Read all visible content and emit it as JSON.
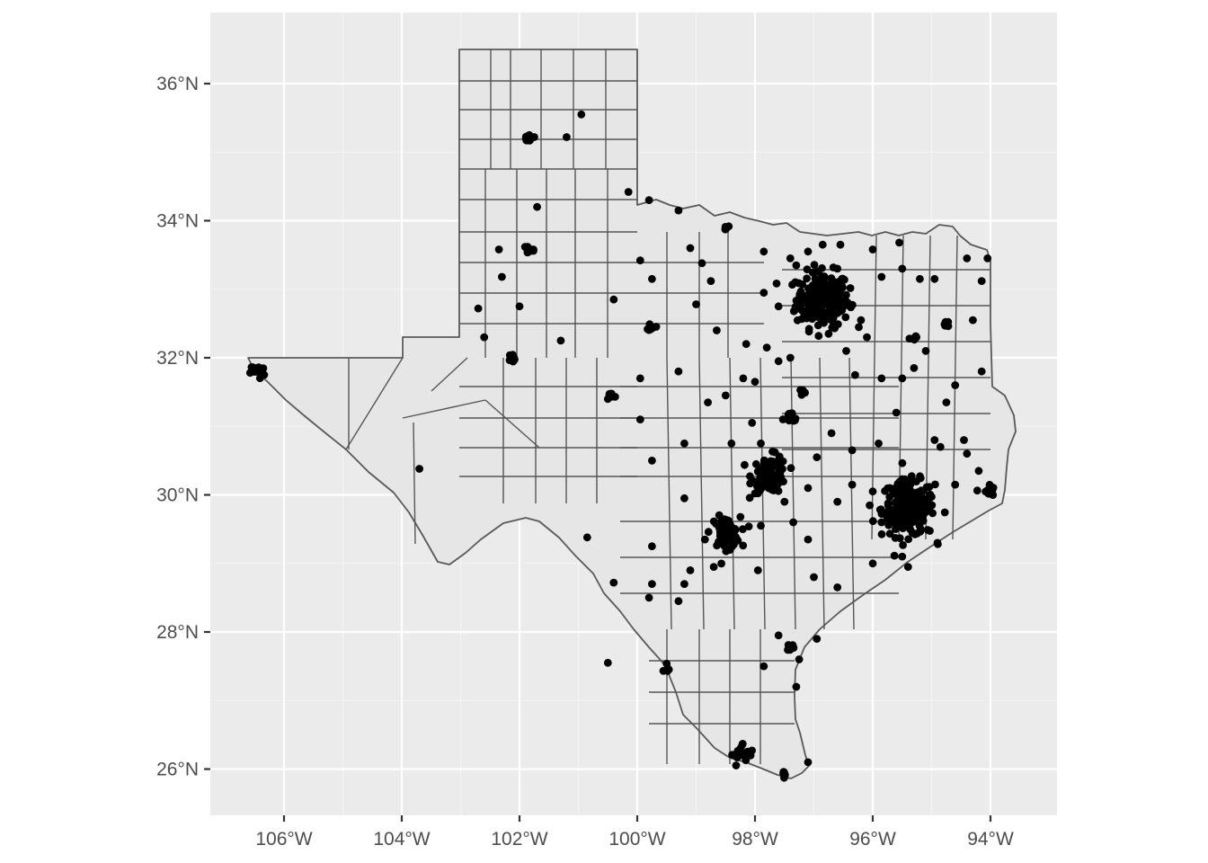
{
  "map": {
    "title": "",
    "x_ticks": [
      {
        "value": -106,
        "label": "106°W"
      },
      {
        "value": -104,
        "label": "104°W"
      },
      {
        "value": -102,
        "label": "102°W"
      },
      {
        "value": -100,
        "label": "100°W"
      },
      {
        "value": -98,
        "label": "98°W"
      },
      {
        "value": -96,
        "label": "96°W"
      },
      {
        "value": -94,
        "label": "94°W"
      }
    ],
    "y_ticks": [
      {
        "value": 26,
        "label": "26°N"
      },
      {
        "value": 28,
        "label": "28°N"
      },
      {
        "value": 30,
        "label": "30°N"
      },
      {
        "value": 32,
        "label": "32°N"
      },
      {
        "value": 34,
        "label": "34°N"
      },
      {
        "value": 36,
        "label": "36°N"
      }
    ],
    "xlim": [
      -107.2,
      -93.0
    ],
    "ylim": [
      25.3,
      37.0
    ],
    "colors": {
      "panel": "#ebebeb",
      "fill": "#e6e6e6",
      "border": "#595959",
      "point": "#000000"
    }
  },
  "chart_data": {
    "type": "scatter",
    "xlabel": "",
    "ylabel": "",
    "clusters": [
      {
        "lon": -96.85,
        "lat": 32.85,
        "spread": 0.45,
        "n": 220
      },
      {
        "lon": -95.4,
        "lat": 29.8,
        "spread": 0.45,
        "n": 200
      },
      {
        "lon": -97.75,
        "lat": 30.3,
        "spread": 0.3,
        "n": 90
      },
      {
        "lon": -98.5,
        "lat": 29.45,
        "spread": 0.25,
        "n": 70
      },
      {
        "lon": -97.4,
        "lat": 31.1,
        "spread": 0.12,
        "n": 15
      },
      {
        "lon": -106.45,
        "lat": 31.8,
        "spread": 0.12,
        "n": 15
      },
      {
        "lon": -101.85,
        "lat": 33.58,
        "spread": 0.1,
        "n": 15
      },
      {
        "lon": -101.85,
        "lat": 35.2,
        "spread": 0.08,
        "n": 8
      },
      {
        "lon": -102.1,
        "lat": 32.0,
        "spread": 0.08,
        "n": 8
      },
      {
        "lon": -100.45,
        "lat": 31.45,
        "spread": 0.07,
        "n": 8
      },
      {
        "lon": -97.4,
        "lat": 27.78,
        "spread": 0.07,
        "n": 8
      },
      {
        "lon": -97.5,
        "lat": 25.95,
        "spread": 0.06,
        "n": 6
      },
      {
        "lon": -98.2,
        "lat": 26.2,
        "spread": 0.2,
        "n": 18
      },
      {
        "lon": -94.05,
        "lat": 30.05,
        "spread": 0.12,
        "n": 10
      },
      {
        "lon": -95.3,
        "lat": 32.3,
        "spread": 0.07,
        "n": 6
      },
      {
        "lon": -94.75,
        "lat": 32.5,
        "spread": 0.06,
        "n": 6
      },
      {
        "lon": -99.75,
        "lat": 32.45,
        "spread": 0.06,
        "n": 6
      },
      {
        "lon": -98.5,
        "lat": 33.9,
        "spread": 0.05,
        "n": 5
      },
      {
        "lon": -97.15,
        "lat": 31.5,
        "spread": 0.06,
        "n": 5
      },
      {
        "lon": -99.5,
        "lat": 27.5,
        "spread": 0.08,
        "n": 5
      }
    ],
    "points": [
      [
        -100.95,
        35.55
      ],
      [
        -101.7,
        34.2
      ],
      [
        -100.15,
        34.42
      ],
      [
        -99.3,
        34.15
      ],
      [
        -99.8,
        34.3
      ],
      [
        -102.35,
        33.58
      ],
      [
        -102.3,
        33.18
      ],
      [
        -102.7,
        32.72
      ],
      [
        -102.6,
        32.3
      ],
      [
        -102.0,
        32.75
      ],
      [
        -101.3,
        32.25
      ],
      [
        -100.4,
        32.85
      ],
      [
        -99.95,
        33.42
      ],
      [
        -99.75,
        33.15
      ],
      [
        -99.1,
        33.6
      ],
      [
        -98.9,
        33.38
      ],
      [
        -98.75,
        33.12
      ],
      [
        -99.0,
        32.78
      ],
      [
        -98.65,
        32.4
      ],
      [
        -97.85,
        33.55
      ],
      [
        -97.4,
        33.45
      ],
      [
        -97.1,
        33.55
      ],
      [
        -96.85,
        33.65
      ],
      [
        -96.55,
        33.65
      ],
      [
        -96.0,
        33.58
      ],
      [
        -95.55,
        33.68
      ],
      [
        -95.5,
        33.3
      ],
      [
        -95.2,
        33.15
      ],
      [
        -94.95,
        33.15
      ],
      [
        -95.85,
        33.18
      ],
      [
        -94.4,
        33.45
      ],
      [
        -94.05,
        33.45
      ],
      [
        -94.15,
        33.12
      ],
      [
        -94.3,
        32.55
      ],
      [
        -95.1,
        32.1
      ],
      [
        -95.3,
        31.85
      ],
      [
        -94.15,
        31.8
      ],
      [
        -94.6,
        31.6
      ],
      [
        -94.75,
        31.35
      ],
      [
        -95.5,
        31.7
      ],
      [
        -95.85,
        31.7
      ],
      [
        -96.3,
        31.75
      ],
      [
        -96.45,
        32.1
      ],
      [
        -96.75,
        32.35
      ],
      [
        -96.2,
        32.55
      ],
      [
        -96.1,
        32.3
      ],
      [
        -98.15,
        32.2
      ],
      [
        -97.8,
        32.15
      ],
      [
        -97.4,
        32.0
      ],
      [
        -98.0,
        31.65
      ],
      [
        -98.2,
        31.7
      ],
      [
        -98.8,
        31.35
      ],
      [
        -99.3,
        31.8
      ],
      [
        -99.95,
        31.7
      ],
      [
        -99.2,
        30.75
      ],
      [
        -98.4,
        30.75
      ],
      [
        -99.75,
        30.5
      ],
      [
        -99.95,
        31.1
      ],
      [
        -99.2,
        29.95
      ],
      [
        -98.85,
        29.35
      ],
      [
        -99.1,
        28.9
      ],
      [
        -99.2,
        28.7
      ],
      [
        -99.3,
        28.45
      ],
      [
        -99.75,
        28.7
      ],
      [
        -99.8,
        28.5
      ],
      [
        -99.75,
        29.25
      ],
      [
        -100.4,
        28.72
      ],
      [
        -100.85,
        29.38
      ],
      [
        -103.7,
        30.38
      ],
      [
        -100.5,
        27.55
      ],
      [
        -97.85,
        27.5
      ],
      [
        -97.95,
        28.9
      ],
      [
        -97.0,
        28.8
      ],
      [
        -96.6,
        28.65
      ],
      [
        -96.95,
        27.9
      ],
      [
        -97.6,
        27.95
      ],
      [
        -97.25,
        27.6
      ],
      [
        -97.3,
        27.2
      ],
      [
        -97.1,
        26.1
      ],
      [
        -98.7,
        28.95
      ],
      [
        -97.35,
        29.6
      ],
      [
        -97.1,
        29.35
      ],
      [
        -96.6,
        29.9
      ],
      [
        -96.35,
        30.15
      ],
      [
        -96.35,
        30.65
      ],
      [
        -96.7,
        30.9
      ],
      [
        -96.95,
        30.55
      ],
      [
        -97.1,
        30.1
      ],
      [
        -97.5,
        29.9
      ],
      [
        -97.9,
        29.55
      ],
      [
        -96.0,
        30.05
      ],
      [
        -95.85,
        29.6
      ],
      [
        -95.5,
        29.1
      ],
      [
        -95.4,
        28.95
      ],
      [
        -94.9,
        29.3
      ],
      [
        -96.0,
        29.0
      ],
      [
        -94.85,
        30.7
      ],
      [
        -94.4,
        30.6
      ],
      [
        -94.2,
        30.35
      ],
      [
        -94.6,
        30.15
      ],
      [
        -95.15,
        30.05
      ],
      [
        -94.95,
        30.8
      ],
      [
        -94.45,
        30.8
      ],
      [
        -95.6,
        31.2
      ],
      [
        -95.9,
        30.75
      ],
      [
        -97.9,
        30.75
      ],
      [
        -98.05,
        31.05
      ],
      [
        -98.5,
        31.45
      ],
      [
        -97.6,
        31.95
      ],
      [
        -97.6,
        32.75
      ],
      [
        -97.85,
        32.95
      ],
      [
        -97.3,
        33.35
      ],
      [
        -96.6,
        33.3
      ],
      [
        -101.2,
        35.22
      ],
      [
        -101.75,
        35.22
      ]
    ]
  }
}
